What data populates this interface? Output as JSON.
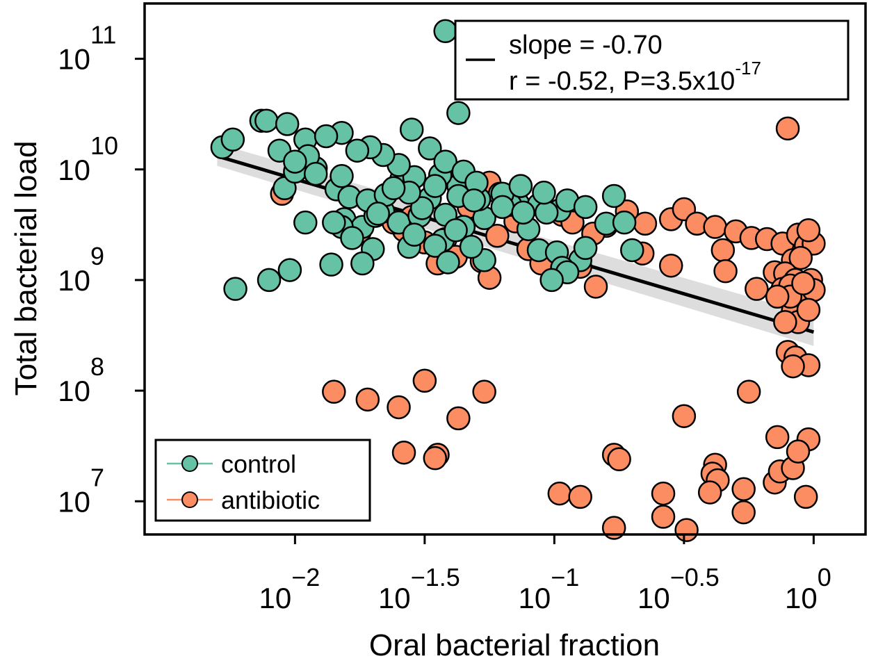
{
  "chart_data": {
    "type": "scatter",
    "xlabel": "Oral bacterial fraction",
    "ylabel": "Total bacterial load",
    "x_scale": "log10",
    "y_scale": "log10",
    "xlim_log10": [
      -2.58,
      0.2
    ],
    "ylim_log10": [
      6.7,
      11.5
    ],
    "x_ticks": [
      {
        "value": -2,
        "base": "10",
        "exp": "−2"
      },
      {
        "value": -1.5,
        "base": "10",
        "exp": "−1.5"
      },
      {
        "value": -1,
        "base": "10",
        "exp": "−1"
      },
      {
        "value": -0.5,
        "base": "10",
        "exp": "−0.5"
      },
      {
        "value": 0,
        "base": "10",
        "exp": "0"
      }
    ],
    "y_ticks": [
      {
        "value": 7,
        "base": "10",
        "exp": "7"
      },
      {
        "value": 8,
        "base": "10",
        "exp": "8"
      },
      {
        "value": 9,
        "base": "10",
        "exp": "9"
      },
      {
        "value": 10,
        "base": "10",
        "exp": "10"
      },
      {
        "value": 11,
        "base": "10",
        "exp": "11"
      }
    ],
    "grid": false,
    "fit": {
      "x_log10": [
        -2.3,
        0.0
      ],
      "y_log10": [
        10.12,
        8.53
      ],
      "color": "#000000",
      "ci_color": "#d9d9d9"
    },
    "stats_box": {
      "placement": "top-right",
      "line1": "slope = -0.70",
      "line2_main": "r = -0.52, P=3.5x10",
      "line2_exp": "-17"
    },
    "legend": {
      "placement": "bottom-left",
      "entries": [
        "control",
        "antibiotic"
      ]
    },
    "series": [
      {
        "name": "antibiotic",
        "color": "#fc8d62",
        "points": [
          [
            -2.05,
            9.78
          ],
          [
            -1.85,
            7.99
          ],
          [
            -1.72,
            7.92
          ],
          [
            -1.55,
            9.57
          ],
          [
            -1.42,
            9.37
          ],
          [
            -1.33,
            9.66
          ],
          [
            -1.28,
            9.17
          ],
          [
            -1.1,
            9.28
          ],
          [
            -1.5,
            9.34
          ],
          [
            -1.38,
            9.21
          ],
          [
            -1.58,
            9.45
          ],
          [
            -1.62,
            9.52
          ],
          [
            -1.45,
            9.15
          ],
          [
            -1.22,
            9.4
          ],
          [
            -1.18,
            9.7
          ],
          [
            -1.35,
            9.85
          ],
          [
            -1.25,
            9.02
          ],
          [
            -1.05,
            9.15
          ],
          [
            -0.97,
            9.59
          ],
          [
            -0.93,
            9.52
          ],
          [
            -0.8,
            9.49
          ],
          [
            -0.72,
            9.62
          ],
          [
            -0.65,
            9.51
          ],
          [
            -0.55,
            9.55
          ],
          [
            -0.5,
            9.64
          ],
          [
            -0.45,
            9.51
          ],
          [
            -0.38,
            9.48
          ],
          [
            -0.3,
            9.44
          ],
          [
            -0.24,
            9.38
          ],
          [
            -0.18,
            9.37
          ],
          [
            -0.12,
            9.33
          ],
          [
            -0.06,
            9.41
          ],
          [
            -0.03,
            9.31
          ],
          [
            0.0,
            9.33
          ],
          [
            -0.02,
            9.45
          ],
          [
            -0.08,
            9.18
          ],
          [
            -0.05,
            9.2
          ],
          [
            -0.35,
            9.27
          ],
          [
            -0.15,
            9.07
          ],
          [
            -0.11,
            9.06
          ],
          [
            -0.07,
            9.0
          ],
          [
            -0.12,
            8.92
          ],
          [
            -0.09,
            8.95
          ],
          [
            -0.03,
            8.85
          ],
          [
            -0.01,
            9.0
          ],
          [
            0.0,
            8.91
          ],
          [
            -0.08,
            8.72
          ],
          [
            -0.06,
            8.62
          ],
          [
            -0.02,
            8.73
          ],
          [
            -0.11,
            8.62
          ],
          [
            -0.09,
            8.85
          ],
          [
            -0.04,
            8.97
          ],
          [
            -0.22,
            8.92
          ],
          [
            -0.14,
            8.85
          ],
          [
            -1.5,
            8.09
          ],
          [
            -1.6,
            7.85
          ],
          [
            -1.37,
            7.75
          ],
          [
            -1.27,
            7.99
          ],
          [
            -1.58,
            7.44
          ],
          [
            -1.45,
            7.42
          ],
          [
            -1.46,
            7.39
          ],
          [
            -0.98,
            7.07
          ],
          [
            -0.9,
            7.04
          ],
          [
            -0.77,
            7.42
          ],
          [
            -0.75,
            7.38
          ],
          [
            -0.77,
            6.76
          ],
          [
            -0.58,
            7.07
          ],
          [
            -0.58,
            6.86
          ],
          [
            -0.5,
            7.77
          ],
          [
            -0.49,
            6.74
          ],
          [
            -0.38,
            7.33
          ],
          [
            -0.39,
            7.25
          ],
          [
            -0.37,
            7.19
          ],
          [
            -0.4,
            7.08
          ],
          [
            -0.27,
            7.11
          ],
          [
            -0.27,
            6.9
          ],
          [
            -0.15,
            7.17
          ],
          [
            -0.25,
            7.99
          ],
          [
            -0.14,
            7.58
          ],
          [
            -0.13,
            7.27
          ],
          [
            -0.08,
            7.3
          ],
          [
            -0.02,
            7.56
          ],
          [
            -0.03,
            7.04
          ],
          [
            -0.06,
            7.45
          ],
          [
            -0.1,
            8.35
          ],
          [
            -0.07,
            8.3
          ],
          [
            -0.02,
            8.23
          ],
          [
            -0.08,
            8.22
          ],
          [
            -1.34,
            9.8
          ],
          [
            -1.25,
            9.88
          ],
          [
            -0.85,
            9.42
          ],
          [
            -0.84,
            8.94
          ],
          [
            -0.66,
            9.24
          ],
          [
            -0.34,
            9.08
          ],
          [
            -0.55,
            9.13
          ],
          [
            -0.1,
            10.37
          ],
          [
            -1.15,
            9.53
          ],
          [
            -0.9,
            9.12
          ],
          [
            -1.75,
            9.44
          ]
        ]
      },
      {
        "name": "control",
        "color": "#66c2a5",
        "points": [
          [
            -1.42,
            11.25
          ],
          [
            -1.37,
            10.51
          ],
          [
            -2.28,
            10.2
          ],
          [
            -2.24,
            10.27
          ],
          [
            -2.13,
            10.44
          ],
          [
            -2.11,
            10.44
          ],
          [
            -2.03,
            10.41
          ],
          [
            -1.96,
            10.27
          ],
          [
            -2.06,
            10.17
          ],
          [
            -1.92,
            10.01
          ],
          [
            -1.84,
            9.82
          ],
          [
            -1.82,
            9.94
          ],
          [
            -1.81,
            9.55
          ],
          [
            -1.74,
            9.48
          ],
          [
            -1.69,
            9.58
          ],
          [
            -1.79,
            9.75
          ],
          [
            -1.82,
            9.48
          ],
          [
            -1.72,
            9.72
          ],
          [
            -1.66,
            9.62
          ],
          [
            -1.6,
            9.52
          ],
          [
            -1.52,
            9.58
          ],
          [
            -1.43,
            9.36
          ],
          [
            -1.56,
            9.3
          ],
          [
            -1.65,
            9.77
          ],
          [
            -1.59,
            9.91
          ],
          [
            -1.48,
            9.74
          ],
          [
            -1.42,
            9.59
          ],
          [
            -1.35,
            9.48
          ],
          [
            -1.27,
            9.56
          ],
          [
            -1.21,
            9.78
          ],
          [
            -1.14,
            9.69
          ],
          [
            -1.06,
            9.68
          ],
          [
            -0.98,
            9.63
          ],
          [
            -1.03,
            9.61
          ],
          [
            -1.1,
            9.46
          ],
          [
            -1.17,
            9.68
          ],
          [
            -1.29,
            9.73
          ],
          [
            -1.37,
            9.85
          ],
          [
            -1.44,
            9.95
          ],
          [
            -1.54,
            9.93
          ],
          [
            -1.6,
            10.04
          ],
          [
            -1.66,
            10.13
          ],
          [
            -1.71,
            10.2
          ],
          [
            -1.76,
            10.17
          ],
          [
            -1.82,
            10.33
          ],
          [
            -1.88,
            10.3
          ],
          [
            -1.55,
            10.36
          ],
          [
            -1.48,
            10.19
          ],
          [
            -1.42,
            10.07
          ],
          [
            -1.35,
            9.98
          ],
          [
            -1.3,
            9.88
          ],
          [
            -1.2,
            9.78
          ],
          [
            -1.13,
            9.85
          ],
          [
            -1.04,
            9.79
          ],
          [
            -0.95,
            9.72
          ],
          [
            -0.88,
            9.66
          ],
          [
            -0.8,
            9.51
          ],
          [
            -0.77,
            9.76
          ],
          [
            -0.73,
            9.52
          ],
          [
            -0.7,
            9.27
          ],
          [
            -0.9,
            9.18
          ],
          [
            -0.88,
            9.29
          ],
          [
            -1.68,
            9.6
          ],
          [
            -1.85,
            9.52
          ],
          [
            -1.78,
            9.38
          ],
          [
            -1.7,
            9.28
          ],
          [
            -1.74,
            9.15
          ],
          [
            -1.86,
            9.14
          ],
          [
            -2.02,
            9.09
          ],
          [
            -2.1,
            9.0
          ],
          [
            -2.23,
            8.92
          ],
          [
            -1.96,
            9.52
          ],
          [
            -1.54,
            9.41
          ],
          [
            -1.46,
            9.31
          ],
          [
            -1.41,
            9.16
          ],
          [
            -1.06,
            9.27
          ],
          [
            -0.99,
            9.25
          ],
          [
            -0.97,
            9.11
          ],
          [
            -0.95,
            9.07
          ],
          [
            -1.01,
            9.0
          ],
          [
            -1.27,
            9.18
          ],
          [
            -1.32,
            9.3
          ],
          [
            -1.38,
            9.45
          ],
          [
            -1.51,
            9.65
          ],
          [
            -1.56,
            9.79
          ],
          [
            -1.62,
            9.83
          ],
          [
            -1.46,
            9.85
          ],
          [
            -1.37,
            9.76
          ],
          [
            -1.31,
            9.72
          ],
          [
            -1.2,
            9.66
          ],
          [
            -1.12,
            9.61
          ],
          [
            -2.04,
            9.83
          ],
          [
            -2.0,
            9.98
          ],
          [
            -1.95,
            10.12
          ],
          [
            -2.0,
            10.07
          ],
          [
            -1.92,
            9.96
          ]
        ]
      }
    ]
  }
}
